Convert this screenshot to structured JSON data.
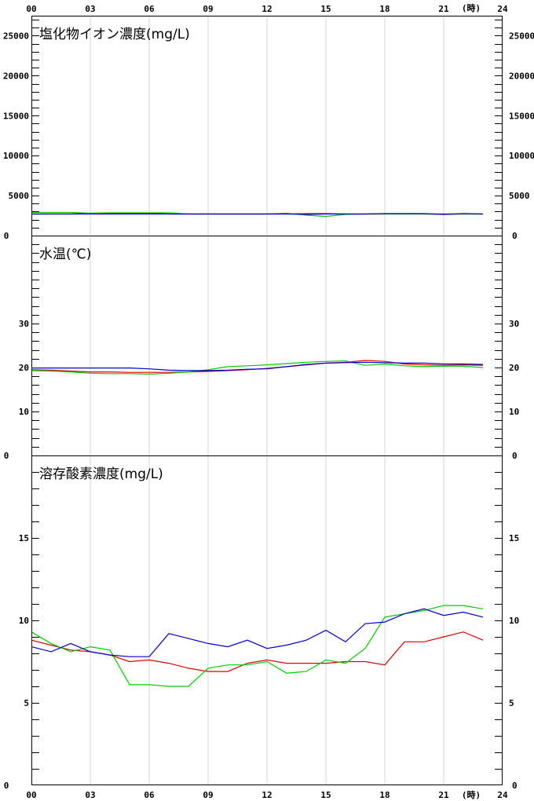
{
  "top_axis": {
    "labels": [
      "00",
      "03",
      "06",
      "09",
      "12",
      "15",
      "18",
      "21",
      "24"
    ],
    "unit": "(時)"
  },
  "bottom_axis": {
    "labels": [
      "00",
      "03",
      "06",
      "09",
      "12",
      "15",
      "18",
      "21",
      "24"
    ],
    "unit": "(時)"
  },
  "colors": {
    "red": "#e00000",
    "green": "#00cc00",
    "blue": "#0000cc",
    "purple": "#800080",
    "grid": "#d4d4d4",
    "frame": "#000000"
  },
  "chart_data": [
    {
      "type": "line",
      "title": "塩化物イオン濃度(mg/L)",
      "ylim": [
        0,
        27500
      ],
      "yticks": [
        0,
        5000,
        10000,
        15000,
        20000,
        25000
      ],
      "ytick_labels": [
        "0",
        "5000",
        "10000",
        "15000",
        "20000",
        "25000"
      ],
      "x": [
        0,
        1,
        2,
        3,
        4,
        5,
        6,
        7,
        8,
        9,
        10,
        11,
        12,
        13,
        14,
        15,
        16,
        17,
        18,
        19,
        20,
        21,
        22,
        23
      ],
      "series": [
        {
          "color_key": "red",
          "values": [
            2700,
            2700,
            2700,
            2800,
            2800,
            2800,
            2800,
            2700,
            2700,
            2700,
            2700,
            2700,
            2700,
            2700,
            2750,
            2750,
            2700,
            2700,
            2700,
            2700,
            2700,
            2700,
            2700,
            2700
          ]
        },
        {
          "color_key": "green",
          "values": [
            2900,
            2900,
            2900,
            2800,
            2850,
            2850,
            2850,
            2850,
            2700,
            2700,
            2700,
            2700,
            2700,
            2800,
            2550,
            2400,
            2650,
            2700,
            2700,
            2700,
            2700,
            2650,
            2700,
            2700
          ]
        },
        {
          "color_key": "blue",
          "values": [
            2700,
            2700,
            2700,
            2700,
            2700,
            2700,
            2700,
            2700,
            2700,
            2700,
            2700,
            2700,
            2700,
            2700,
            2650,
            2700,
            2700,
            2700,
            2750,
            2750,
            2750,
            2650,
            2750,
            2700
          ]
        }
      ]
    },
    {
      "type": "line",
      "title": "水温(℃)",
      "ylim": [
        0,
        50
      ],
      "yticks": [
        0,
        10,
        20,
        30
      ],
      "ytick_labels": [
        "0",
        "10",
        "20",
        "30"
      ],
      "x": [
        0,
        1,
        2,
        3,
        4,
        5,
        6,
        7,
        8,
        9,
        10,
        11,
        12,
        13,
        14,
        15,
        16,
        17,
        18,
        19,
        20,
        21,
        22,
        23
      ],
      "series": [
        {
          "color_key": "red",
          "values": [
            19.5,
            19.4,
            19.2,
            19.0,
            19.0,
            18.9,
            18.9,
            18.9,
            19.0,
            19.1,
            19.3,
            19.5,
            19.8,
            20.2,
            20.6,
            21.0,
            21.2,
            21.6,
            21.4,
            20.8,
            20.6,
            20.5,
            20.6,
            20.5
          ]
        },
        {
          "color_key": "green",
          "values": [
            19.3,
            19.2,
            19.0,
            18.7,
            18.6,
            18.6,
            18.5,
            18.7,
            19.0,
            19.5,
            20.2,
            20.4,
            20.6,
            20.9,
            21.2,
            21.4,
            21.5,
            20.5,
            20.8,
            20.4,
            20.2,
            20.3,
            20.3,
            20.0
          ]
        },
        {
          "color_key": "blue",
          "values": [
            19.9,
            19.9,
            19.9,
            19.9,
            19.9,
            19.9,
            19.7,
            19.4,
            19.3,
            19.3,
            19.4,
            19.6,
            19.7,
            20.2,
            20.7,
            21.0,
            21.1,
            21.2,
            21.1,
            21.0,
            21.0,
            20.8,
            20.8,
            20.7
          ]
        }
      ]
    },
    {
      "type": "line",
      "title": "溶存酸素濃度(mg/L)",
      "ylim": [
        0,
        20
      ],
      "yticks": [
        0,
        5,
        10,
        15
      ],
      "ytick_labels": [
        "0",
        "5",
        "10",
        "15"
      ],
      "x": [
        0,
        1,
        2,
        3,
        4,
        5,
        6,
        7,
        8,
        9,
        10,
        11,
        12,
        13,
        14,
        15,
        16,
        17,
        18,
        19,
        20,
        21,
        22,
        23
      ],
      "series": [
        {
          "color_key": "red",
          "values": [
            8.8,
            8.5,
            8.2,
            8.1,
            7.9,
            7.5,
            7.6,
            7.4,
            7.1,
            6.9,
            6.9,
            7.4,
            7.6,
            7.4,
            7.4,
            7.4,
            7.5,
            7.5,
            7.3,
            8.7,
            8.7,
            9.0,
            9.3,
            8.8
          ]
        },
        {
          "color_key": "green",
          "values": [
            9.3,
            8.6,
            8.1,
            8.4,
            8.2,
            6.1,
            6.1,
            6.0,
            6.0,
            7.1,
            7.3,
            7.3,
            7.5,
            6.8,
            6.9,
            7.6,
            7.4,
            8.3,
            10.2,
            10.4,
            10.6,
            10.9,
            10.9,
            10.7
          ]
        },
        {
          "color_key": "blue",
          "values": [
            8.4,
            8.1,
            8.6,
            8.1,
            7.9,
            7.8,
            7.8,
            9.2,
            8.9,
            8.6,
            8.4,
            8.8,
            8.3,
            8.5,
            8.8,
            9.4,
            8.7,
            9.8,
            9.9,
            10.4,
            10.7,
            10.3,
            10.5,
            10.2
          ]
        }
      ]
    }
  ]
}
